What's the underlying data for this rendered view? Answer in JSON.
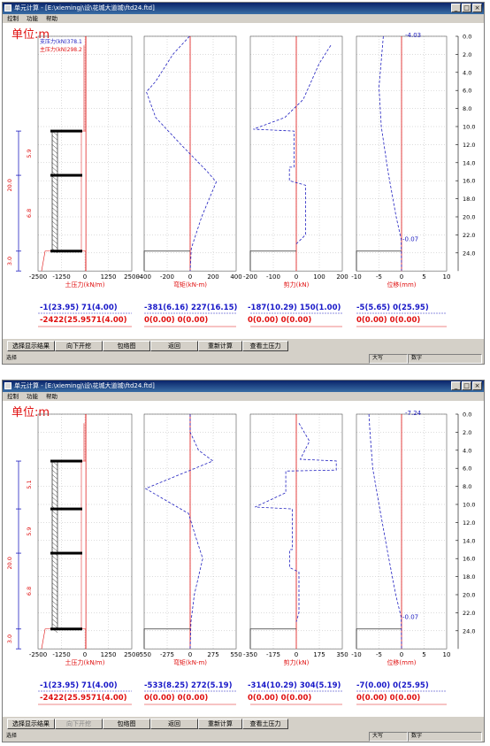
{
  "windows": [
    {
      "title": "单元计算 - [E:\\xiemingj\\设\\花城大道城\\ftd24.ftd]",
      "menu": [
        "控制",
        "功能",
        "帮助"
      ],
      "unit_label": "单位:m",
      "legend": [
        "支压力(kN)378.1",
        "主压力(kN)298.2"
      ],
      "section_labels": [
        "20.0",
        "5.9",
        "6.8",
        "3.0"
      ],
      "depth_ticks": [
        "0.0",
        "2.0",
        "4.0",
        "6.0",
        "8.0",
        "10.0",
        "12.0",
        "14.0",
        "16.0",
        "18.0",
        "20.0",
        "22.0",
        "24.0"
      ],
      "top_displacement": "-4.03",
      "bottom_displacement": "-0.07",
      "panels": [
        {
          "label": "土压力(kN/m)",
          "ticks": [
            "-2500",
            "-1250",
            "0",
            "1250",
            "2500"
          ]
        },
        {
          "label": "弯矩(kN-m)",
          "ticks": [
            "-400",
            "-200",
            "0",
            "200",
            "400"
          ]
        },
        {
          "label": "剪力(kN)",
          "ticks": [
            "-200",
            "-100",
            "0",
            "100",
            "200"
          ]
        },
        {
          "label": "位移(mm)",
          "ticks": [
            "-10",
            "-5",
            "0",
            "5",
            "10"
          ]
        }
      ],
      "results": [
        {
          "blue": "-1(23.95)   71(4.00)",
          "red": "-2422(25.9571(4.00)"
        },
        {
          "blue": "-381(6.16)  227(16.15)",
          "red": "0(0.00)     0(0.00)"
        },
        {
          "blue": "-187(10.29) 150(1.00)",
          "red": "0(0.00)     0(0.00)"
        },
        {
          "blue": "-5(5.65)    0(25.95)",
          "red": "0(0.00)     0(0.00)"
        }
      ],
      "buttons": [
        {
          "label": "选择显示结果",
          "enabled": true
        },
        {
          "label": "向下开挖",
          "enabled": true
        },
        {
          "label": "包络图",
          "enabled": true
        },
        {
          "label": "返回",
          "enabled": true
        },
        {
          "label": "重新计算",
          "enabled": true
        },
        {
          "label": "查看土压力",
          "enabled": true
        }
      ],
      "status": [
        "选择",
        "大写",
        "数字"
      ]
    },
    {
      "title": "单元计算 - [E:\\xiemingj\\设\\花城大道城\\ftd24.ftd]",
      "menu": [
        "控制",
        "功能",
        "帮助"
      ],
      "unit_label": "单位:m",
      "legend": [],
      "section_labels": [
        "5.1",
        "20.0",
        "5.9",
        "6.8",
        "3.0"
      ],
      "depth_ticks": [
        "0.0",
        "2.0",
        "4.0",
        "6.0",
        "8.0",
        "10.0",
        "12.0",
        "14.0",
        "16.0",
        "18.0",
        "20.0",
        "22.0",
        "24.0"
      ],
      "top_displacement": "-7.24",
      "bottom_displacement": "-0.07",
      "panels": [
        {
          "label": "土压力(kN/m)",
          "ticks": [
            "-2500",
            "-1250",
            "0",
            "1250",
            "2500"
          ]
        },
        {
          "label": "弯矩(kN-m)",
          "ticks": [
            "-550",
            "-275",
            "0",
            "275",
            "550"
          ]
        },
        {
          "label": "剪力(kN)",
          "ticks": [
            "-350",
            "-175",
            "0",
            "175",
            "350"
          ]
        },
        {
          "label": "位移(mm)",
          "ticks": [
            "-10",
            "-5",
            "0",
            "5",
            "10"
          ]
        }
      ],
      "results": [
        {
          "blue": "-1(23.95)   71(4.00)",
          "red": "-2422(25.9571(4.00)"
        },
        {
          "blue": "-533(8.25)  272(5.19)",
          "red": "0(0.00)     0(0.00)"
        },
        {
          "blue": "-314(10.29) 304(5.19)",
          "red": "0(0.00)     0(0.00)"
        },
        {
          "blue": "-7(0.00)    0(25.95)",
          "red": "0(0.00)     0(0.00)"
        }
      ],
      "buttons": [
        {
          "label": "选择显示结果",
          "enabled": true
        },
        {
          "label": "向下开挖",
          "enabled": false
        },
        {
          "label": "包络图",
          "enabled": true
        },
        {
          "label": "返回",
          "enabled": true
        },
        {
          "label": "重新计算",
          "enabled": true
        },
        {
          "label": "查看土压力",
          "enabled": true
        }
      ],
      "status": [
        "选择",
        "大写",
        "数字"
      ]
    }
  ],
  "chart_data": [
    {
      "type": "line",
      "title": "",
      "ylabel": "单位:m",
      "depth_axis": [
        0,
        24
      ],
      "series": [
        {
          "panel": "弯矩(kN-m)",
          "xlim": [
            -400,
            400
          ],
          "points": [
            [
              -5,
              0
            ],
            [
              -150,
              2
            ],
            [
              -300,
              5
            ],
            [
              -381,
              6.16
            ],
            [
              -300,
              9
            ],
            [
              -80,
              12
            ],
            [
              150,
              15
            ],
            [
              227,
              16.15
            ],
            [
              100,
              20
            ],
            [
              10,
              23.5
            ],
            [
              0,
              26
            ]
          ]
        },
        {
          "panel": "剪力(kN)",
          "xlim": [
            -200,
            200
          ],
          "points": [
            [
              150,
              1
            ],
            [
              100,
              3
            ],
            [
              30,
              7
            ],
            [
              -50,
              9
            ],
            [
              -187,
              10.29
            ],
            [
              -10,
              10.5
            ],
            [
              -10,
              14.5
            ],
            [
              -30,
              14.5
            ],
            [
              -30,
              16
            ],
            [
              40,
              16.5
            ],
            [
              40,
              22
            ],
            [
              0,
              23
            ]
          ]
        },
        {
          "panel": "位移(mm)",
          "xlim": [
            -10,
            10
          ],
          "points": [
            [
              -4.03,
              0
            ],
            [
              -5,
              5.65
            ],
            [
              -4.5,
              10
            ],
            [
              -3,
              15
            ],
            [
              -1.2,
              20
            ],
            [
              -0.07,
              22.5
            ],
            [
              0,
              25.95
            ]
          ]
        }
      ]
    },
    {
      "type": "line",
      "title": "",
      "ylabel": "单位:m",
      "depth_axis": [
        0,
        24
      ],
      "series": [
        {
          "panel": "弯矩(kN-m)",
          "xlim": [
            -550,
            550
          ],
          "points": [
            [
              0,
              0
            ],
            [
              0,
              2
            ],
            [
              100,
              4
            ],
            [
              272,
              5.19
            ],
            [
              -533,
              8.25
            ],
            [
              -300,
              9.5
            ],
            [
              -20,
              11
            ],
            [
              80,
              14
            ],
            [
              150,
              16
            ],
            [
              50,
              20
            ],
            [
              10,
              23
            ],
            [
              0,
              26
            ]
          ]
        },
        {
          "panel": "剪力(kN)",
          "xlim": [
            -350,
            350
          ],
          "points": [
            [
              20,
              1
            ],
            [
              100,
              3
            ],
            [
              30,
              5
            ],
            [
              304,
              5.19
            ],
            [
              304,
              6.2
            ],
            [
              -80,
              6.3
            ],
            [
              -80,
              8.7
            ],
            [
              -314,
              10.29
            ],
            [
              -30,
              10.5
            ],
            [
              -30,
              15
            ],
            [
              -50,
              15
            ],
            [
              -50,
              17
            ],
            [
              20,
              17.5
            ],
            [
              20,
              22
            ],
            [
              0,
              23
            ]
          ]
        },
        {
          "panel": "位移(mm)",
          "xlim": [
            -10,
            10
          ],
          "points": [
            [
              -7.24,
              0
            ],
            [
              -7,
              2
            ],
            [
              -6.4,
              6
            ],
            [
              -5,
              10
            ],
            [
              -3.2,
              15
            ],
            [
              -1.3,
              20
            ],
            [
              -0.07,
              22.5
            ],
            [
              0,
              25.95
            ]
          ]
        }
      ]
    }
  ]
}
